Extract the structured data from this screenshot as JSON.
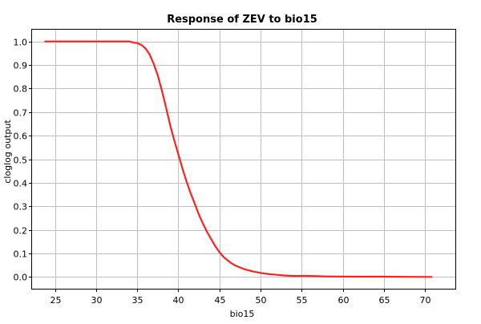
{
  "chart_data": {
    "type": "line",
    "title": "Response of ZEV to bio15",
    "xlabel": "bio15",
    "ylabel": "cloglog output",
    "xlim": [
      22.2,
      73.7
    ],
    "ylim": [
      -0.05,
      1.05
    ],
    "xticks": [
      25,
      30,
      35,
      40,
      45,
      50,
      55,
      60,
      65,
      70
    ],
    "yticks": [
      0.0,
      0.1,
      0.2,
      0.3,
      0.4,
      0.5,
      0.6,
      0.7,
      0.8,
      0.9,
      1.0
    ],
    "ytick_labels": [
      "0.0",
      "0.1",
      "0.2",
      "0.3",
      "0.4",
      "0.5",
      "0.6",
      "0.7",
      "0.8",
      "0.9",
      "1.0"
    ],
    "grid": true,
    "series": [
      {
        "color": "#ff2020",
        "x": [
          23.8,
          25,
          28,
          30,
          32,
          34,
          34.6,
          35,
          35.5,
          36,
          36.5,
          37,
          37.5,
          38,
          38.5,
          39,
          39.5,
          40,
          40.5,
          41,
          41.5,
          42,
          42.5,
          43,
          43.5,
          44,
          44.5,
          45,
          45.5,
          46,
          46.5,
          47,
          48,
          49,
          50,
          51,
          52,
          53,
          54,
          55,
          56,
          57,
          58,
          60,
          62,
          65,
          68,
          70.8
        ],
        "y": [
          1.0,
          1.0,
          1.0,
          1.0,
          1.0,
          1.0,
          0.995,
          0.993,
          0.985,
          0.97,
          0.945,
          0.905,
          0.855,
          0.79,
          0.72,
          0.645,
          0.58,
          0.52,
          0.46,
          0.405,
          0.355,
          0.31,
          0.265,
          0.225,
          0.19,
          0.16,
          0.13,
          0.105,
          0.085,
          0.07,
          0.057,
          0.047,
          0.033,
          0.024,
          0.017,
          0.012,
          0.009,
          0.006,
          0.004,
          0.004,
          0.004,
          0.003,
          0.002,
          0.0015,
          0.001,
          0.001,
          0.0005,
          0.0
        ]
      }
    ]
  }
}
